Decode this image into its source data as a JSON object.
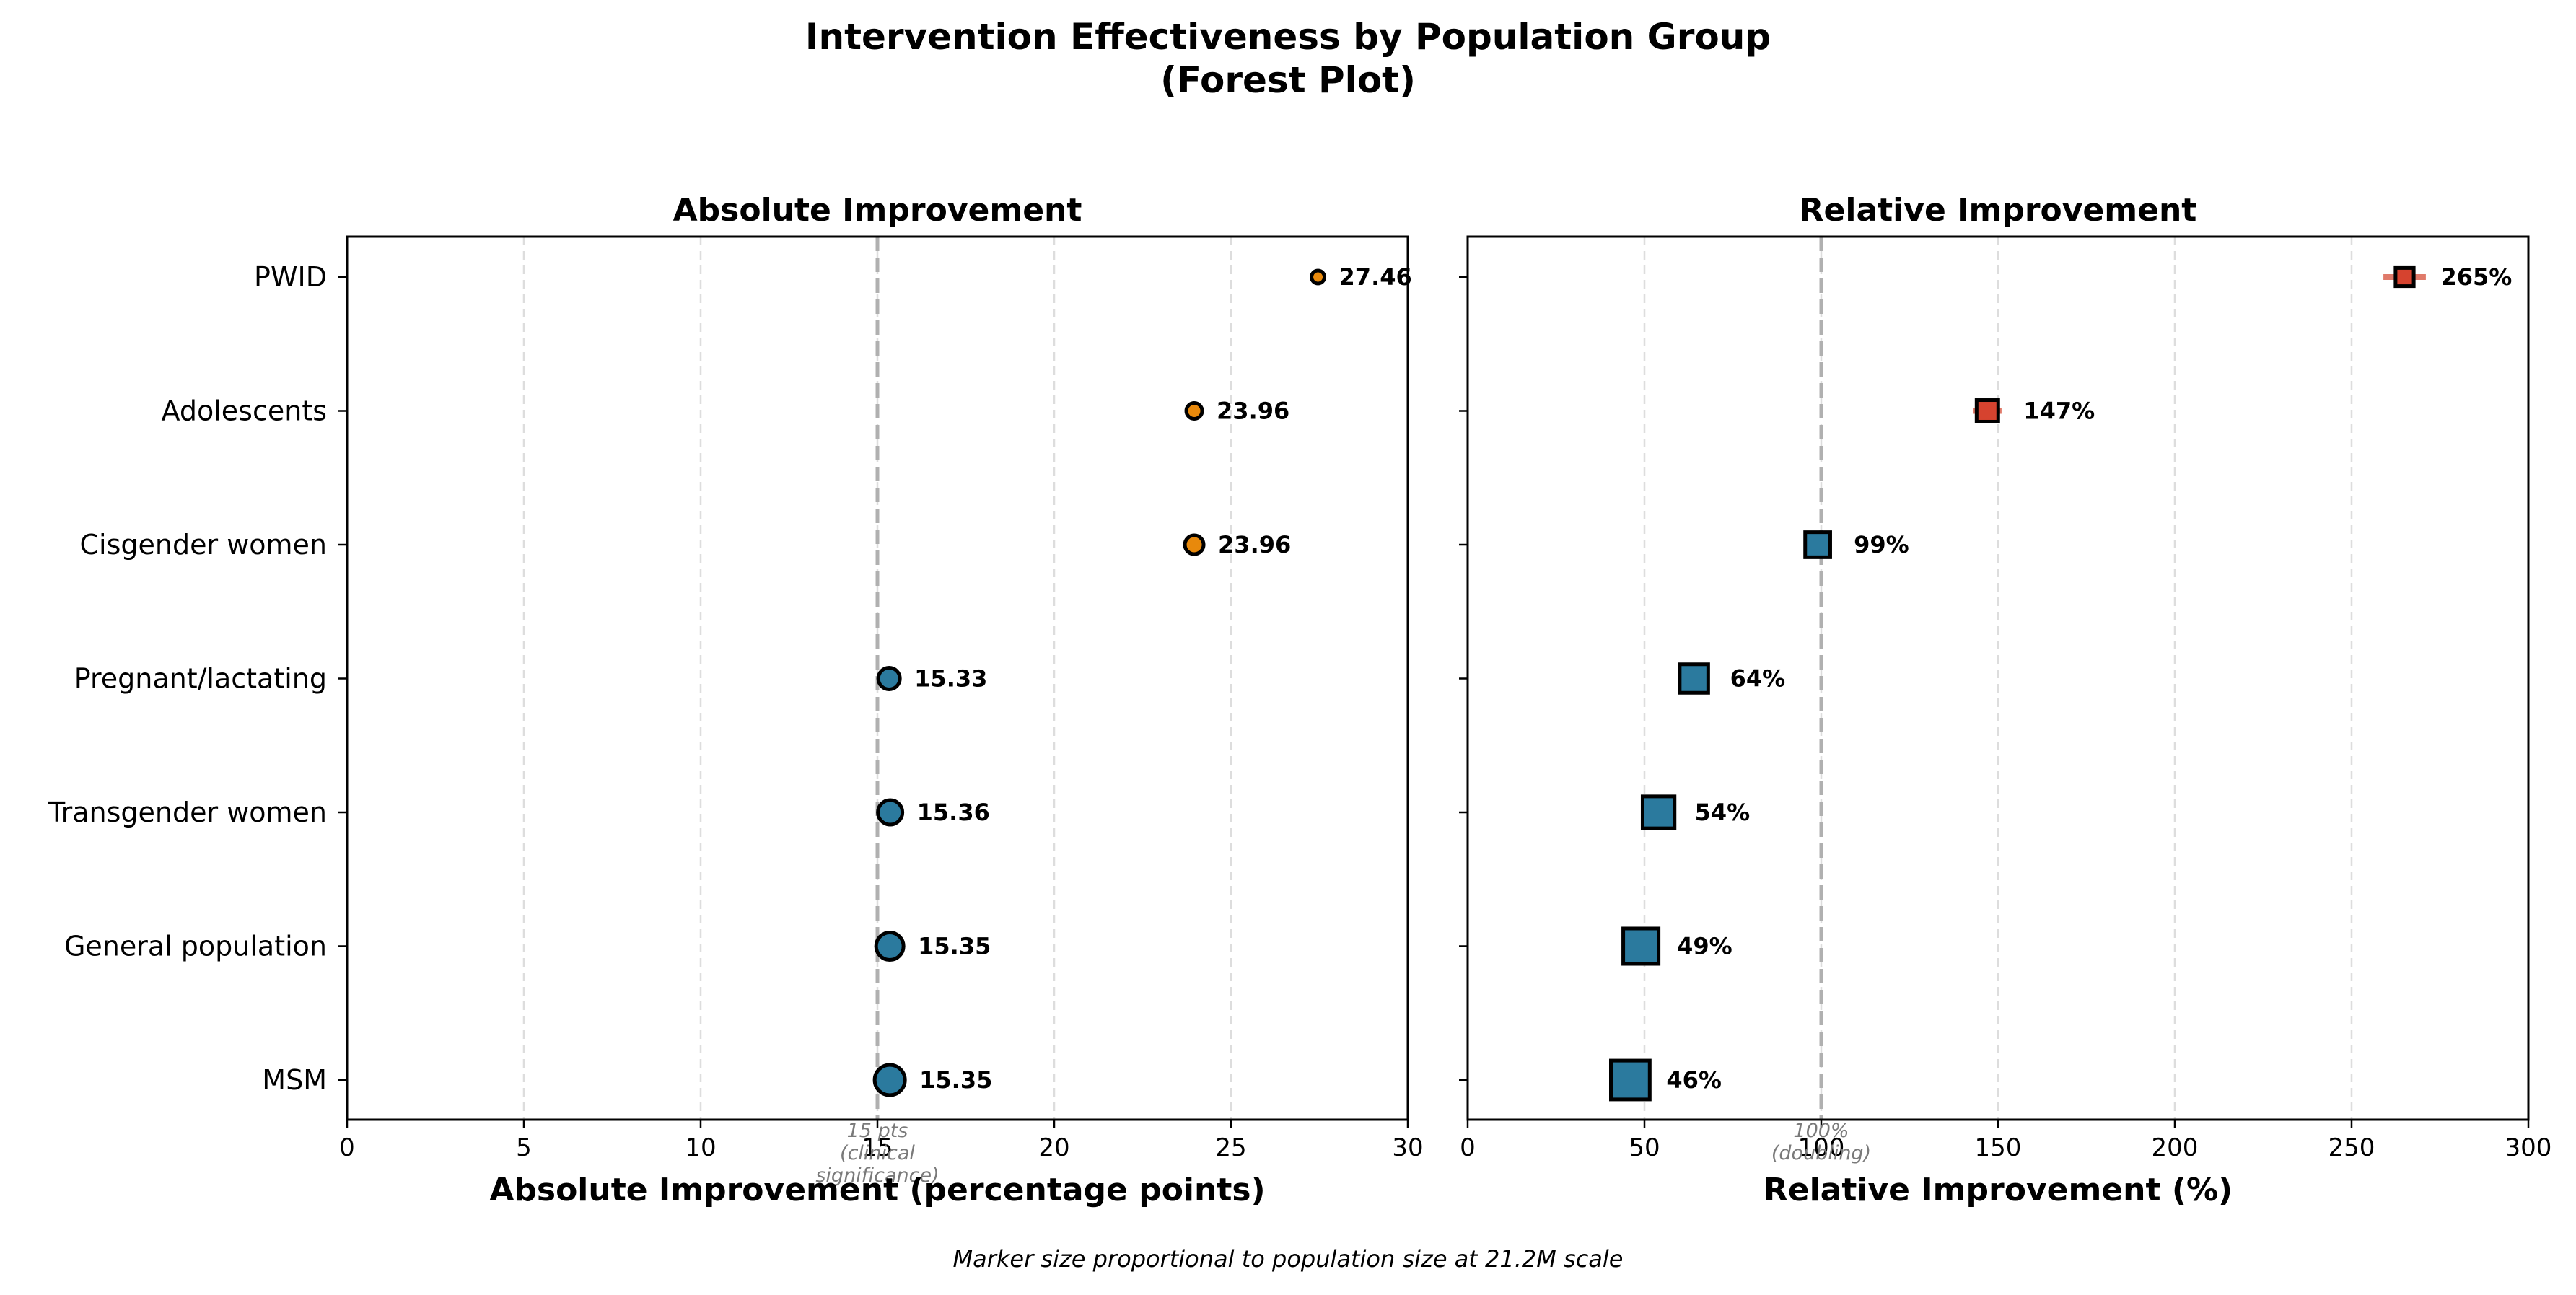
{
  "figure": {
    "title_line1": "Intervention Effectiveness by Population Group",
    "title_line2": "(Forest Plot)",
    "footnote": "Marker size proportional to population size at 21.2M scale"
  },
  "colors": {
    "significant": "#e8890c",
    "baseline": "#2b7a9e",
    "high_relative": "#d6432f",
    "error_bar_relative": "#e07a6a",
    "reference_line": "#b0b0b0",
    "grid": "#dddddd"
  },
  "chart_data": [
    {
      "type": "scatter",
      "subtype": "forest",
      "title": "Absolute Improvement",
      "xlabel": "Absolute Improvement (percentage points)",
      "xlim": [
        0,
        30
      ],
      "xticks": [
        0,
        5,
        10,
        15,
        20,
        25,
        30
      ],
      "grid": "x dashed",
      "marker": "circle",
      "reference_line": {
        "x": 15,
        "label_lines": [
          "15 pts",
          "(clinical",
          "significance)"
        ]
      },
      "categories": [
        "PWID",
        "Adolescents",
        "Cisgender women",
        "Pregnant/lactating",
        "Transgender women",
        "General population",
        "MSM"
      ],
      "values": [
        27.46,
        23.96,
        23.96,
        15.33,
        15.36,
        15.35,
        15.35
      ],
      "value_labels": [
        "27.46",
        "23.96",
        "23.96",
        "15.33",
        "15.36",
        "15.35",
        "15.35"
      ],
      "point_colors": [
        "significant",
        "significant",
        "significant",
        "baseline",
        "baseline",
        "baseline",
        "baseline"
      ]
    },
    {
      "type": "scatter",
      "subtype": "forest",
      "title": "Relative Improvement",
      "xlabel": "Relative Improvement (%)",
      "xlim": [
        0,
        300
      ],
      "xticks": [
        0,
        50,
        100,
        150,
        200,
        250,
        300
      ],
      "grid": "x dashed",
      "marker": "square",
      "reference_line": {
        "x": 100,
        "label_lines": [
          "100%",
          "(doubling)"
        ]
      },
      "categories": [
        "PWID",
        "Adolescents",
        "Cisgender women",
        "Pregnant/lactating",
        "Transgender women",
        "General population",
        "MSM"
      ],
      "values": [
        265,
        147,
        99,
        64,
        54,
        49,
        46
      ],
      "value_labels": [
        "265%",
        "147%",
        "99%",
        "64%",
        "54%",
        "49%",
        "46%"
      ],
      "ci_low": [
        259,
        143,
        null,
        null,
        null,
        null,
        null
      ],
      "ci_high": [
        271,
        151,
        null,
        null,
        null,
        null,
        null
      ],
      "point_colors": [
        "high_relative",
        "high_relative",
        "baseline",
        "baseline",
        "baseline",
        "baseline",
        "baseline"
      ]
    }
  ]
}
